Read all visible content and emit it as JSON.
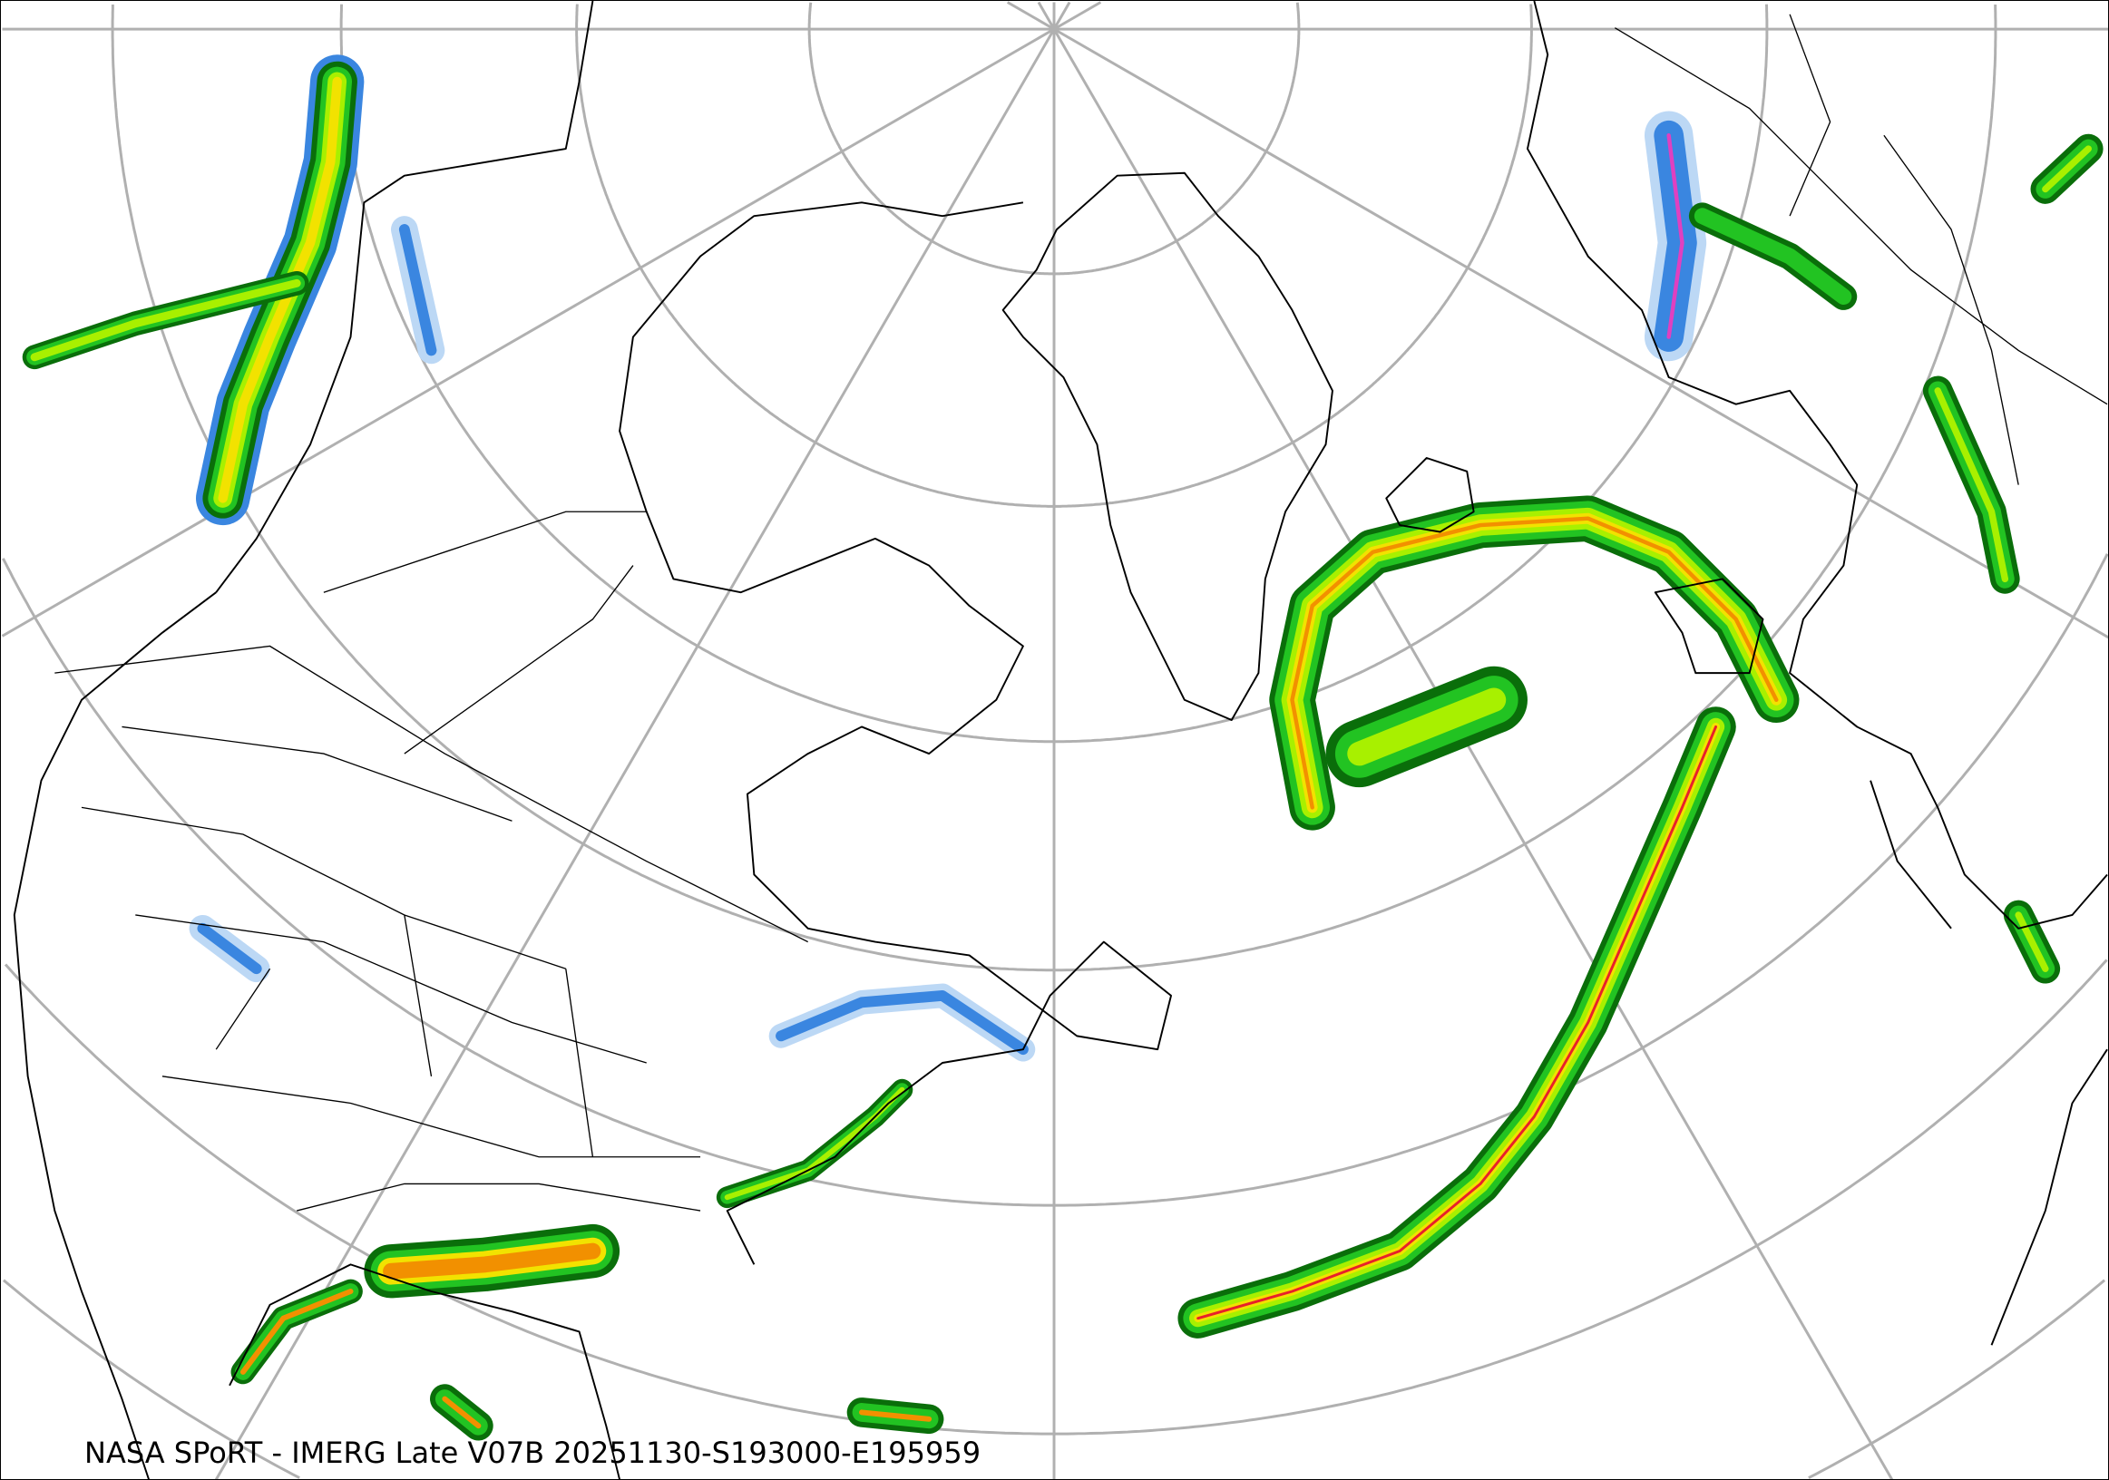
{
  "map": {
    "title": "NASA SPoRT - IMERG Late V07B 20251130-S193000-E195959",
    "projection": "polar-stereographic",
    "precip_colors": {
      "light_blue": "#bcd8f5",
      "blue": "#3a86e0",
      "dark_green": "#0a6e0a",
      "green": "#22c322",
      "light_green": "#a8f000",
      "yellow": "#f2e200",
      "orange": "#f29000",
      "red": "#e8202a",
      "magenta": "#e040c0"
    },
    "graticule_color": "#b0b0b0",
    "coastline_color": "#000000"
  }
}
